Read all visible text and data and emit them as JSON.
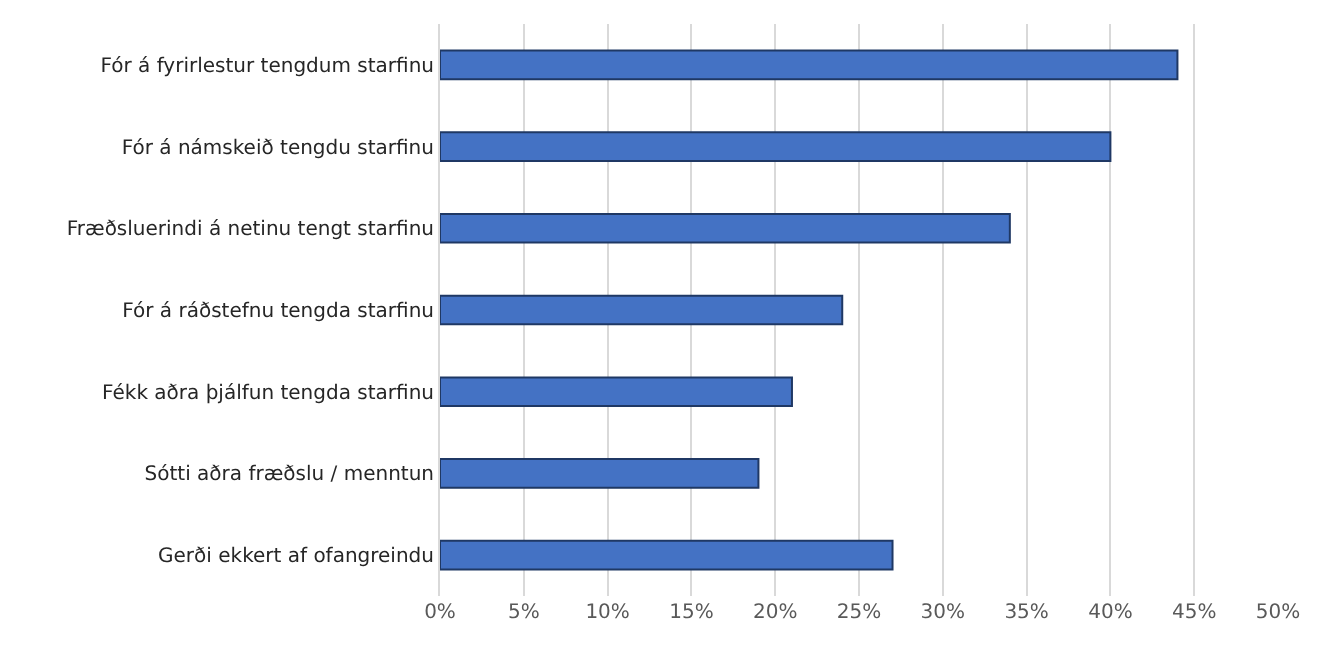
{
  "chart_data": {
    "type": "bar",
    "orientation": "horizontal",
    "categories": [
      "Fór á fyrirlestur tengdum starfinu",
      "Fór á námskeið tengdu starfinu",
      "Fræðsluerindi á netinu tengt starfinu",
      "Fór á ráðstefnu tengda starfinu",
      "Fékk aðra þjálfun tengda starfinu",
      "Sótti aðra fræðslu / menntun",
      "Gerði ekkert af ofangreindu"
    ],
    "values": [
      44,
      40,
      34,
      24,
      21,
      19,
      27
    ],
    "color": "#4472c4",
    "xlim": [
      0,
      50
    ],
    "xticks": [
      {
        "value": 0,
        "label": "0%"
      },
      {
        "value": 5,
        "label": "5%"
      },
      {
        "value": 10,
        "label": "10%"
      },
      {
        "value": 15,
        "label": "15%"
      },
      {
        "value": 20,
        "label": "20%"
      },
      {
        "value": 25,
        "label": "25%"
      },
      {
        "value": 30,
        "label": "30%"
      },
      {
        "value": 35,
        "label": "35%"
      },
      {
        "value": 40,
        "label": "40%"
      },
      {
        "value": 45,
        "label": "45%"
      },
      {
        "value": 50,
        "label": "50%"
      }
    ],
    "grid": "x"
  }
}
